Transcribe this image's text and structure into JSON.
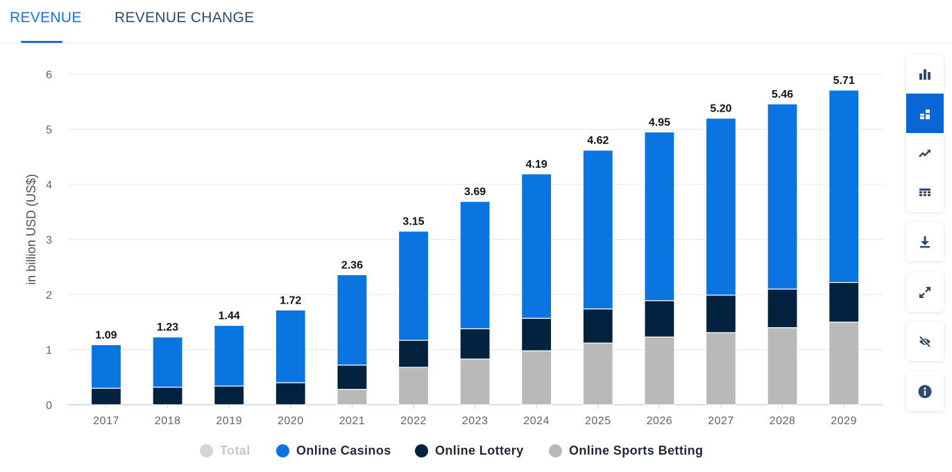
{
  "tabs": [
    {
      "label": "REVENUE",
      "active": true
    },
    {
      "label": "REVENUE CHANGE",
      "active": false
    }
  ],
  "toolbar": {
    "view_icons": [
      "bar-chart-icon",
      "stacked-bar-icon",
      "trend-line-icon",
      "table-grid-icon"
    ],
    "active_view": "stacked-bar-icon",
    "actions": [
      "download-icon",
      "fullscreen-icon",
      "hide-icon",
      "info-icon"
    ],
    "accent_color": "#0a66d6"
  },
  "chart_data": {
    "type": "bar",
    "stacked": true,
    "ylabel": "in billion USD (US$)",
    "xlabel": "",
    "ylim": [
      0,
      6
    ],
    "yticks": [
      0,
      1,
      2,
      3,
      4,
      5,
      6
    ],
    "grid": true,
    "categories": [
      "2017",
      "2018",
      "2019",
      "2020",
      "2021",
      "2022",
      "2023",
      "2024",
      "2025",
      "2026",
      "2027",
      "2028",
      "2029"
    ],
    "totals": [
      "1.09",
      "1.23",
      "1.44",
      "1.72",
      "2.36",
      "3.15",
      "3.69",
      "4.19",
      "4.62",
      "4.95",
      "5.20",
      "5.46",
      "5.71"
    ],
    "series": [
      {
        "name": "Online Sports Betting",
        "color": "#b9b9b9",
        "values": [
          0,
          0,
          0,
          0,
          0.28,
          0.68,
          0.83,
          0.98,
          1.12,
          1.23,
          1.31,
          1.4,
          1.5
        ]
      },
      {
        "name": "Online Lottery",
        "color": "#03223f",
        "values": [
          0.3,
          0.32,
          0.34,
          0.4,
          0.44,
          0.49,
          0.55,
          0.59,
          0.62,
          0.66,
          0.68,
          0.7,
          0.72
        ]
      },
      {
        "name": "Online Casinos",
        "color": "#0a74e0",
        "values": [
          0.79,
          0.91,
          1.1,
          1.32,
          1.64,
          1.98,
          2.31,
          2.62,
          2.88,
          3.06,
          3.21,
          3.36,
          3.49
        ]
      }
    ],
    "legend": [
      {
        "name": "Total",
        "color": "#d5d5d5",
        "inactive": true
      },
      {
        "name": "Online Casinos",
        "color": "#0a74e0",
        "inactive": false
      },
      {
        "name": "Online Lottery",
        "color": "#03223f",
        "inactive": false
      },
      {
        "name": "Online Sports Betting",
        "color": "#b9b9b9",
        "inactive": false
      }
    ],
    "legend_position": "bottom"
  }
}
